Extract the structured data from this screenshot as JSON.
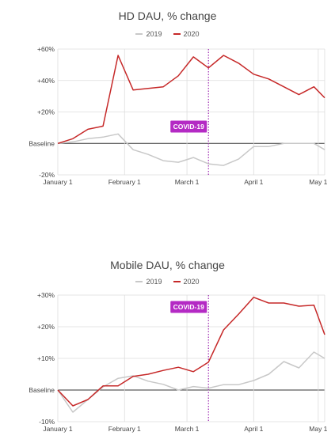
{
  "chart_data": [
    {
      "type": "line",
      "title": "HD DAU, % change",
      "xlabel": "",
      "ylabel": "",
      "ylim": [
        -20,
        60
      ],
      "xlim": [
        0,
        124
      ],
      "y_ticks": [
        {
          "value": 60,
          "label": "+60%"
        },
        {
          "value": 40,
          "label": "+40%"
        },
        {
          "value": 20,
          "label": "+20%"
        },
        {
          "value": 0,
          "label": "Baseline"
        },
        {
          "value": -20,
          "label": "-20%"
        }
      ],
      "x_ticks": [
        {
          "value": 0,
          "label": "January 1"
        },
        {
          "value": 31,
          "label": "February 1"
        },
        {
          "value": 60,
          "label": "March 1"
        },
        {
          "value": 91,
          "label": "April 1"
        },
        {
          "value": 121,
          "label": "May 1"
        }
      ],
      "annotation": {
        "label": "COVID-19",
        "x": 70
      },
      "grid": true,
      "legend_position": "top-center",
      "series": [
        {
          "name": "2019",
          "color": "#c8c8c8",
          "x": [
            0,
            7,
            14,
            21,
            28,
            35,
            42,
            49,
            56,
            63,
            70,
            77,
            84,
            91,
            98,
            105,
            112,
            119,
            124
          ],
          "y": [
            0,
            1,
            3,
            4,
            6,
            -4,
            -7,
            -11,
            -12,
            -9,
            -13,
            -14,
            -10,
            -2,
            -2,
            0,
            0,
            0,
            -4
          ]
        },
        {
          "name": "2020",
          "color": "#c62828",
          "x": [
            0,
            7,
            14,
            21,
            28,
            35,
            42,
            49,
            56,
            63,
            70,
            77,
            84,
            91,
            98,
            105,
            112,
            119,
            124
          ],
          "y": [
            0,
            3,
            9,
            11,
            56,
            34,
            35,
            36,
            43,
            55,
            48,
            56,
            51,
            44,
            41,
            36,
            31,
            36,
            29
          ]
        }
      ]
    },
    {
      "type": "line",
      "title": "Mobile DAU, % change",
      "xlabel": "",
      "ylabel": "",
      "ylim": [
        -10,
        30
      ],
      "xlim": [
        0,
        124
      ],
      "y_ticks": [
        {
          "value": 30,
          "label": "+30%"
        },
        {
          "value": 20,
          "label": "+20%"
        },
        {
          "value": 10,
          "label": "+10%"
        },
        {
          "value": 0,
          "label": "Baseline"
        },
        {
          "value": -10,
          "label": "-10%"
        }
      ],
      "x_ticks": [
        {
          "value": 0,
          "label": "January 1"
        },
        {
          "value": 31,
          "label": "February 1"
        },
        {
          "value": 60,
          "label": "March 1"
        },
        {
          "value": 91,
          "label": "April 1"
        },
        {
          "value": 121,
          "label": "May 1"
        }
      ],
      "annotation": {
        "label": "COVID-19",
        "x": 70
      },
      "grid": true,
      "legend_position": "top-center",
      "series": [
        {
          "name": "2019",
          "color": "#c8c8c8",
          "x": [
            0,
            7,
            14,
            21,
            28,
            35,
            42,
            49,
            56,
            63,
            70,
            77,
            84,
            91,
            98,
            105,
            112,
            119,
            124
          ],
          "y": [
            0,
            -7,
            -3,
            1,
            3.7,
            4.5,
            2.8,
            1.8,
            0,
            1.1,
            0.6,
            1.7,
            1.7,
            3,
            5,
            9,
            7,
            12,
            10
          ]
        },
        {
          "name": "2020",
          "color": "#c62828",
          "x": [
            0,
            7,
            14,
            21,
            28,
            35,
            42,
            49,
            56,
            63,
            70,
            77,
            84,
            91,
            98,
            105,
            112,
            119,
            124
          ],
          "y": [
            0,
            -5,
            -3,
            1.3,
            1.3,
            4.3,
            5,
            6.2,
            7.2,
            5.8,
            8.8,
            19,
            24,
            29.3,
            27.5,
            27.5,
            26.5,
            26.8,
            17.5
          ]
        }
      ]
    }
  ]
}
